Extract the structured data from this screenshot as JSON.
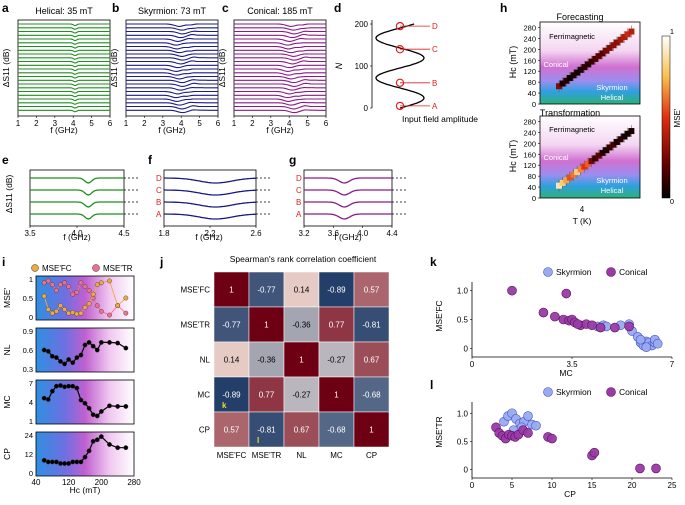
{
  "panel_letters": {
    "a": "a",
    "b": "b",
    "c": "c",
    "d": "d",
    "e": "e",
    "f": "f",
    "g": "g",
    "h": "h",
    "i": "i",
    "j": "j",
    "k": "k",
    "l": "l"
  },
  "colors": {
    "helical": "#1f8f1f",
    "skyrmion": "#1a1a8c",
    "conical": "#8a1a8a",
    "skyr_marker": "#9aaaf2",
    "conical_marker": "#9a3aa6",
    "fc_marker": "#f0a840",
    "tr_marker": "#ef6f8f",
    "red": "#e02020"
  },
  "chart_data": [
    {
      "id": "a",
      "type": "line",
      "title": "Helical: 35 mT",
      "ylabel": "ΔS11 (dB)",
      "xlabel": "f (GHz)",
      "xlim": [
        1,
        6
      ],
      "xticks": [
        "1",
        "2",
        "3",
        "4",
        "5",
        "6"
      ],
      "n_traces": 24,
      "dip_center_ghz": 4.1
    },
    {
      "id": "b",
      "type": "line",
      "title": "Skyrmion: 73 mT",
      "ylabel": "ΔS11 (dB)",
      "xlabel": "f (GHz)",
      "xlim": [
        1,
        6
      ],
      "xticks": [
        "1",
        "2",
        "3",
        "4",
        "5",
        "6"
      ],
      "n_traces": 24,
      "dip_center_ghz": 3.9
    },
    {
      "id": "c",
      "type": "line",
      "title": "Conical: 185 mT",
      "ylabel": "ΔS11 (dB)",
      "xlabel": "f (GHz)",
      "xlim": [
        1,
        6
      ],
      "xticks": [
        "1",
        "2",
        "3",
        "4",
        "5",
        "6"
      ],
      "n_traces": 24,
      "dip_center_ghz": 4.1
    },
    {
      "id": "d",
      "type": "line",
      "ylabel": "N",
      "xlabel": "Input field amplitude",
      "ylim": [
        0,
        200
      ],
      "yticks": [
        "0",
        "100",
        "200"
      ],
      "markers": [
        "A",
        "B",
        "C",
        "D"
      ],
      "marker_N": [
        5,
        60,
        140,
        195
      ]
    },
    {
      "id": "e",
      "type": "line",
      "ylabel": "ΔS11 (dB)",
      "xlabel": "f (GHz)",
      "xlim": [
        3.5,
        4.5
      ],
      "xticks": [
        "3.5",
        "4.0",
        "4.5"
      ],
      "traces": 4
    },
    {
      "id": "f",
      "type": "line",
      "xlabel": "f (GHz)",
      "xlim": [
        1.8,
        2.6
      ],
      "xticks": [
        "1.8",
        "2.2",
        "2.6"
      ],
      "labels": [
        "D",
        "C",
        "B",
        "A"
      ]
    },
    {
      "id": "g",
      "type": "line",
      "xlabel": "f (GHz)",
      "xlim": [
        3.2,
        4.4
      ],
      "xticks": [
        "3.2",
        "3.6",
        "4.0",
        "4.4"
      ],
      "labels": [
        "D",
        "C",
        "B",
        "A"
      ]
    },
    {
      "id": "h",
      "type": "heatmap",
      "titles": [
        "Forecasting",
        "Transformation"
      ],
      "ylabel": "Hc (mT)",
      "xlabel": "T (K)",
      "xtick": "4",
      "ylim": [
        0,
        300
      ],
      "yticks": [
        "0",
        "40",
        "80",
        "120",
        "160",
        "200",
        "240",
        "280"
      ],
      "phases": [
        "Ferrimagnetic",
        "Conical",
        "Skyrmion",
        "Helical"
      ],
      "colorbar_label": "MSE'",
      "colorbar_ticks": [
        "1",
        "0"
      ],
      "forecast_hc": [
        65,
        75,
        85,
        95,
        105,
        115,
        125,
        135,
        145,
        155,
        165,
        175,
        185,
        195,
        205,
        215,
        225,
        235,
        245,
        255,
        265
      ],
      "forecast_mse": [
        0.72,
        0.95,
        0.9,
        0.98,
        0.92,
        0.97,
        0.95,
        0.9,
        0.93,
        0.88,
        0.85,
        0.8,
        0.82,
        0.75,
        0.72,
        0.7,
        0.7,
        0.65,
        0.62,
        0.55,
        0.6
      ],
      "transform_hc": [
        45,
        55,
        65,
        75,
        85,
        95,
        105,
        115,
        125,
        135,
        145,
        155,
        165,
        175,
        185,
        195,
        205,
        215,
        225,
        235,
        245
      ],
      "transform_mse": [
        0.1,
        0.2,
        0.3,
        0.45,
        0.38,
        0.2,
        0.35,
        0.5,
        0.42,
        0.75,
        0.9,
        0.8,
        0.92,
        0.95,
        0.9,
        0.85,
        0.95,
        0.9,
        0.97,
        0.96,
        0.95
      ]
    },
    {
      "id": "i",
      "type": "line",
      "xlabel": "Hc (mT)",
      "xticks": [
        "40",
        "120",
        "200",
        "280"
      ],
      "xlim": [
        40,
        280
      ],
      "legend": [
        "MSE'FC",
        "MSE'TR"
      ],
      "x": [
        60,
        70,
        80,
        90,
        100,
        110,
        120,
        130,
        140,
        150,
        160,
        170,
        180,
        190,
        200,
        220,
        240,
        260
      ],
      "panels": [
        {
          "ylabel": "MSE'",
          "ylim": [
            0,
            1
          ],
          "yticks": [
            "0",
            "0.5",
            "1"
          ],
          "series": [
            {
              "name": "MSE'FC",
              "values": [
                0.55,
                0.2,
                0.1,
                0.15,
                0.3,
                0.2,
                0.1,
                0.12,
                0.08,
                0.1,
                0.25,
                0.35,
                0.6,
                0.85,
                0.9,
                0.95,
                0.3,
                0.5
              ]
            },
            {
              "name": "MSE'TR",
              "values": [
                0.9,
                0.95,
                0.85,
                0.7,
                0.85,
                0.9,
                0.8,
                0.6,
                0.65,
                0.9,
                0.8,
                0.7,
                0.5,
                0.3,
                0.15,
                0.05,
                0.3,
                0.1
              ]
            }
          ]
        },
        {
          "ylabel": "NL",
          "ylim": [
            0.3,
            0.9
          ],
          "yticks": [
            "0.3",
            "0.6",
            "0.9"
          ],
          "values": [
            0.6,
            0.58,
            0.5,
            0.48,
            0.42,
            0.38,
            0.45,
            0.4,
            0.48,
            0.52,
            0.68,
            0.72,
            0.66,
            0.6,
            0.72,
            0.72,
            0.71,
            0.63
          ]
        },
        {
          "ylabel": "MC",
          "ylim": [
            1,
            7
          ],
          "yticks": [
            "1",
            "4",
            "7"
          ],
          "values": [
            4.6,
            4.4,
            5.7,
            6.5,
            6.6,
            6.4,
            6.5,
            6.5,
            6.2,
            4.3,
            3.8,
            3.0,
            2.0,
            1.8,
            2.5,
            3.4,
            3.3,
            3.3
          ]
        },
        {
          "ylabel": "CP",
          "ylim": [
            0,
            24
          ],
          "yticks": [
            "0",
            "12",
            "24"
          ],
          "values": [
            8,
            7,
            7,
            7,
            6,
            6,
            6,
            7,
            7,
            7,
            10,
            14,
            20,
            21,
            23,
            18,
            16,
            16
          ]
        }
      ]
    },
    {
      "id": "j",
      "type": "heatmap",
      "title": "Spearman's rank correlation coefficient",
      "labels": [
        "MSE'FC",
        "MSE'TR",
        "NL",
        "MC",
        "CP"
      ],
      "matrix": [
        [
          1,
          -0.77,
          0.14,
          -0.89,
          0.57
        ],
        [
          -0.77,
          1,
          -0.36,
          0.77,
          -0.81
        ],
        [
          0.14,
          -0.36,
          1,
          -0.27,
          0.67
        ],
        [
          -0.89,
          0.77,
          -0.27,
          1,
          -0.68
        ],
        [
          0.57,
          -0.81,
          0.67,
          -0.68,
          1
        ]
      ],
      "cell_text": [
        [
          "1",
          "-0.77",
          "0.14",
          "-0.89",
          "0.57"
        ],
        [
          "-0.77",
          "1",
          "-0.36",
          "0.77",
          "-0.81"
        ],
        [
          "0.14",
          "-0.36",
          "1",
          "-0.27",
          "0.67"
        ],
        [
          "-0.89",
          "0.77",
          "-0.27",
          "1",
          "-0.68"
        ],
        [
          "0.57",
          "-0.81",
          "0.67",
          "-0.68",
          "1"
        ]
      ],
      "callouts": [
        {
          "row": 3,
          "col": 0,
          "text": "k"
        },
        {
          "row": 4,
          "col": 1,
          "text": "l"
        }
      ]
    },
    {
      "id": "k",
      "type": "scatter",
      "xlabel": "MC",
      "ylabel": "MSE'FC",
      "xlim": [
        0,
        7
      ],
      "ylim": [
        -0.15,
        1.15
      ],
      "xticks": [
        "0",
        "3.5",
        "7"
      ],
      "yticks": [
        "0",
        "0.5",
        "1.0"
      ],
      "series": [
        {
          "name": "Skyrmion",
          "x": [
            4.4,
            4.6,
            4.7,
            5.2,
            5.5,
            5.6,
            5.8,
            5.9,
            6.0,
            6.1,
            6.2,
            6.3,
            6.4,
            6.4,
            6.5,
            5.9,
            6.1
          ],
          "y": [
            0.38,
            0.4,
            0.38,
            0.4,
            0.42,
            0.3,
            0.2,
            0.1,
            0.05,
            0.12,
            0.1,
            0.05,
            0.1,
            0.15,
            0.08,
            0.15,
            0.02
          ]
        },
        {
          "name": "Conical",
          "x": [
            1.4,
            2.5,
            2.9,
            3.2,
            3.4,
            3.5,
            3.6,
            3.8,
            4.0,
            4.2,
            4.5,
            5.0,
            5.5,
            3.3,
            3.7
          ],
          "y": [
            1.0,
            0.62,
            0.55,
            0.5,
            0.48,
            0.5,
            0.45,
            0.4,
            0.42,
            0.4,
            0.36,
            0.36,
            0.38,
            0.95,
            0.42
          ]
        }
      ]
    },
    {
      "id": "l",
      "type": "scatter",
      "xlabel": "CP",
      "ylabel": "MSE'TR",
      "xlim": [
        0,
        25
      ],
      "ylim": [
        -0.15,
        1.2
      ],
      "xticks": [
        "0",
        "5",
        "10",
        "15",
        "20",
        "25"
      ],
      "yticks": [
        "0",
        "0.5",
        "1.0"
      ],
      "series": [
        {
          "name": "Skyrmion",
          "x": [
            4.0,
            4.5,
            5.0,
            5.5,
            6.0,
            6.5,
            7.0,
            7.5,
            8.0,
            5.2,
            6.2
          ],
          "y": [
            0.85,
            0.95,
            1.0,
            0.9,
            0.82,
            0.85,
            0.95,
            0.8,
            0.78,
            0.7,
            0.75
          ]
        },
        {
          "name": "Conical",
          "x": [
            3.0,
            3.4,
            3.8,
            4.2,
            4.6,
            5.0,
            5.4,
            5.8,
            6.4,
            7.0,
            9.5,
            10.0,
            15.0,
            15.3,
            21.0,
            23.0
          ],
          "y": [
            0.75,
            0.65,
            0.6,
            0.55,
            0.62,
            0.6,
            0.58,
            0.62,
            0.7,
            0.65,
            0.58,
            0.55,
            0.25,
            0.3,
            0.02,
            0.02
          ]
        }
      ]
    }
  ]
}
